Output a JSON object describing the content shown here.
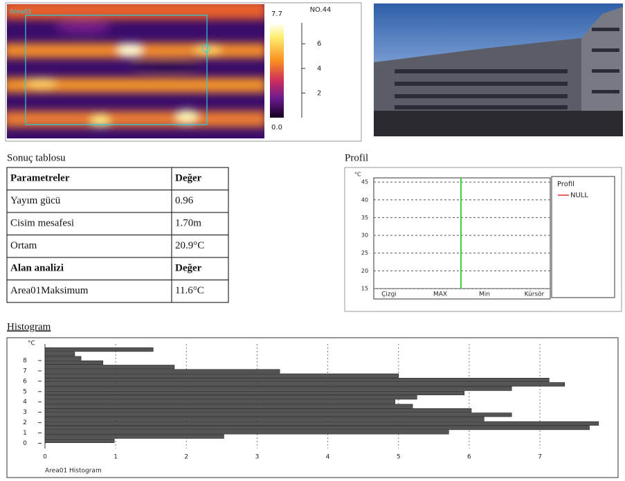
{
  "thermal": {
    "label": "NO.44",
    "area": "Area01",
    "colorbar": {
      "lim": [
        0,
        7.7
      ],
      "ticks": [
        {
          "value": 0,
          "label": "0.0"
        },
        2,
        4,
        6,
        {
          "value": 7.7,
          "label": "7.7"
        }
      ]
    }
  },
  "table": {
    "title": "Sonuç tablosu",
    "rows": [
      [
        "Parametreler",
        "Değer"
      ],
      [
        "Yayım gücü",
        "0.96"
      ],
      [
        "Cisim mesafesi",
        "1.70m"
      ],
      [
        "Ortam",
        "20.9°C"
      ],
      [
        "Alan analizi",
        "Değer"
      ],
      [
        "Area01Maksimum",
        "11.6°C"
      ]
    ]
  },
  "chart_data": [
    {
      "type": "profile",
      "title": "Profil",
      "ylabel": "°C",
      "legend_title": "Profil",
      "categories": [
        "Çizgi",
        "MAX",
        "Min",
        "Kürsör"
      ],
      "series": [
        {
          "name": "NULL",
          "color": "#e03030"
        }
      ],
      "ylim": [
        15,
        46.2
      ],
      "yticks": [
        15,
        20,
        25,
        30,
        35,
        40,
        45
      ],
      "grid": true
    },
    {
      "type": "histogram",
      "title": "Histogram",
      "ylabel": "°C",
      "caption": "Area01  Histogram",
      "color": "#555555",
      "bins": [
        0,
        0.42,
        0.84,
        1.26,
        1.68,
        2.1,
        2.52,
        2.94,
        3.36,
        3.78,
        4.2,
        4.62,
        5.04,
        5.46,
        5.88,
        6.3,
        6.72,
        7.14,
        7.56,
        7.98,
        8.4,
        8.82,
        9.24
      ],
      "values": [
        0.98,
        2.53,
        5.71,
        7.7,
        7.83,
        6.21,
        6.6,
        6.03,
        5.2,
        4.95,
        5.26,
        5.93,
        6.6,
        7.35,
        7.13,
        5.0,
        3.32,
        1.83,
        0.82,
        0.51,
        0.42,
        1.53
      ],
      "xlim": [
        0,
        7.9
      ],
      "xticks": [
        0,
        1,
        2,
        3,
        4,
        5,
        6,
        7
      ],
      "ylim": [
        -0.5,
        9.6
      ],
      "yticks": [
        0,
        1,
        2,
        3,
        4,
        5,
        6,
        7,
        8
      ],
      "grid": true
    }
  ]
}
